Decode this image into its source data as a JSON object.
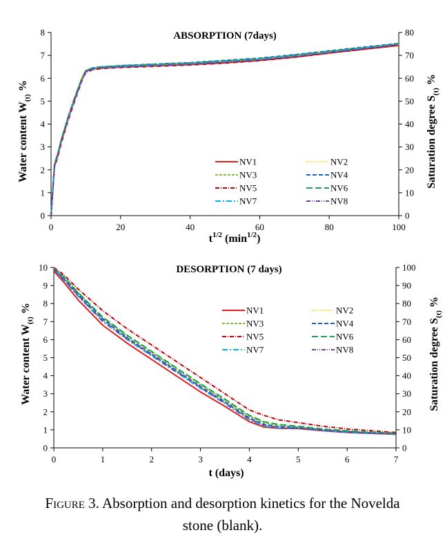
{
  "chart_data": [
    {
      "type": "line",
      "title": "ABSORPTION  (7days)",
      "xlabel": "t^1/2  (min^1/2)",
      "ylabel": "Water content W(t) %",
      "y2label": "Saturation degree S(t) %",
      "xlim": [
        0,
        100
      ],
      "ylim": [
        0,
        8
      ],
      "y2lim": [
        0,
        80
      ],
      "xticks": [
        0,
        20,
        40,
        60,
        80,
        100
      ],
      "yticks": [
        0,
        1,
        2,
        3,
        4,
        5,
        6,
        7,
        8
      ],
      "y2ticks": [
        0,
        10,
        20,
        30,
        40,
        50,
        60,
        70,
        80
      ],
      "grid": false,
      "legend_position": "bottom-right",
      "series": [
        {
          "name": "NV1",
          "color": "#e41a1c",
          "dash": "solid",
          "x": [
            0,
            1,
            2,
            3,
            5,
            7,
            9,
            10,
            12,
            15,
            20,
            30,
            40,
            50,
            60,
            70,
            80,
            90,
            100
          ],
          "y": [
            0,
            2.2,
            2.7,
            3.3,
            4.3,
            5.2,
            6.0,
            6.3,
            6.42,
            6.47,
            6.5,
            6.55,
            6.6,
            6.68,
            6.78,
            6.92,
            7.1,
            7.27,
            7.43
          ]
        },
        {
          "name": "NV2",
          "color": "#ffd700",
          "dash": "1,2",
          "x": [
            0,
            1,
            2,
            3,
            5,
            7,
            9,
            10,
            12,
            15,
            20,
            30,
            40,
            50,
            60,
            70,
            80,
            90,
            100
          ],
          "y": [
            0,
            2.3,
            2.8,
            3.4,
            4.4,
            5.3,
            6.1,
            6.35,
            6.46,
            6.5,
            6.53,
            6.58,
            6.63,
            6.72,
            6.82,
            6.97,
            7.14,
            7.3,
            7.47
          ]
        },
        {
          "name": "NV3",
          "color": "#7fbf3f",
          "dash": "4,2",
          "x": [
            0,
            1,
            2,
            3,
            5,
            7,
            9,
            10,
            12,
            15,
            20,
            30,
            40,
            50,
            60,
            70,
            80,
            90,
            100
          ],
          "y": [
            0,
            2.25,
            2.75,
            3.35,
            4.35,
            5.25,
            6.05,
            6.33,
            6.45,
            6.5,
            6.54,
            6.6,
            6.66,
            6.75,
            6.85,
            7.0,
            7.17,
            7.33,
            7.5
          ]
        },
        {
          "name": "NV4",
          "color": "#1f5fbf",
          "dash": "6,3",
          "x": [
            0,
            1,
            2,
            3,
            5,
            7,
            9,
            10,
            12,
            15,
            20,
            30,
            40,
            50,
            60,
            70,
            80,
            90,
            100
          ],
          "y": [
            0,
            2.2,
            2.7,
            3.3,
            4.3,
            5.2,
            6.0,
            6.32,
            6.45,
            6.5,
            6.55,
            6.62,
            6.68,
            6.78,
            6.88,
            7.03,
            7.2,
            7.36,
            7.52
          ]
        },
        {
          "name": "NV5",
          "color": "#c00000",
          "dash": "6,2,1,2",
          "x": [
            0,
            1,
            2,
            3,
            5,
            7,
            9,
            10,
            12,
            15,
            20,
            30,
            40,
            50,
            60,
            70,
            80,
            90,
            100
          ],
          "y": [
            0,
            2.1,
            2.6,
            3.2,
            4.2,
            5.1,
            5.95,
            6.25,
            6.38,
            6.43,
            6.47,
            6.52,
            6.58,
            6.66,
            6.77,
            6.92,
            7.1,
            7.27,
            7.45
          ]
        },
        {
          "name": "NV6",
          "color": "#1f9f4f",
          "dash": "9,4",
          "x": [
            0,
            1,
            2,
            3,
            5,
            7,
            9,
            10,
            12,
            15,
            20,
            30,
            40,
            50,
            60,
            70,
            80,
            90,
            100
          ],
          "y": [
            0,
            2.25,
            2.75,
            3.35,
            4.35,
            5.25,
            6.05,
            6.33,
            6.46,
            6.51,
            6.55,
            6.61,
            6.67,
            6.76,
            6.86,
            7.01,
            7.18,
            7.34,
            7.5
          ]
        },
        {
          "name": "NV7",
          "color": "#00b0f0",
          "dash": "8,3,2,3",
          "x": [
            0,
            1,
            2,
            3,
            5,
            7,
            9,
            10,
            12,
            15,
            20,
            30,
            40,
            50,
            60,
            70,
            80,
            90,
            100
          ],
          "y": [
            0,
            2.2,
            2.7,
            3.3,
            4.3,
            5.2,
            6.0,
            6.3,
            6.43,
            6.48,
            6.52,
            6.58,
            6.64,
            6.73,
            6.83,
            6.98,
            7.15,
            7.32,
            7.48
          ]
        },
        {
          "name": "NV8",
          "color": "#6a3fa0",
          "dash": "6,2,1,2,1,2",
          "x": [
            0,
            1,
            2,
            3,
            5,
            7,
            9,
            10,
            12,
            15,
            20,
            30,
            40,
            50,
            60,
            70,
            80,
            90,
            100
          ],
          "y": [
            0,
            2.2,
            2.7,
            3.3,
            4.3,
            5.2,
            6.0,
            6.28,
            6.4,
            6.45,
            6.49,
            6.55,
            6.61,
            6.7,
            6.8,
            6.95,
            7.12,
            7.29,
            7.46
          ]
        }
      ]
    },
    {
      "type": "line",
      "title": "DESORPTION  (7 days)",
      "xlabel": "t (days)",
      "ylabel": "Water content W(t) %",
      "y2label": "Saturation degree S(t) %",
      "xlim": [
        0,
        7
      ],
      "ylim": [
        0,
        10
      ],
      "y2lim": [
        0,
        100
      ],
      "xticks": [
        0,
        1,
        2,
        3,
        4,
        5,
        6,
        7
      ],
      "yticks": [
        0,
        1,
        2,
        3,
        4,
        5,
        6,
        7,
        8,
        9,
        10
      ],
      "y2ticks": [
        0,
        10,
        20,
        30,
        40,
        50,
        60,
        70,
        80,
        90,
        100
      ],
      "grid": false,
      "legend_position": "top-right",
      "series": [
        {
          "name": "NV1",
          "color": "#e41a1c",
          "dash": "solid",
          "x": [
            0,
            0.2,
            0.5,
            1,
            1.5,
            2,
            2.5,
            3,
            3.5,
            4,
            4.3,
            4.6,
            5,
            5.5,
            6,
            6.5,
            7
          ],
          "y": [
            9.8,
            9.2,
            8.2,
            6.8,
            5.8,
            4.9,
            4.0,
            3.1,
            2.3,
            1.45,
            1.15,
            1.08,
            1.07,
            0.95,
            0.85,
            0.8,
            0.75
          ]
        },
        {
          "name": "NV2",
          "color": "#ffd700",
          "dash": "1,2",
          "x": [
            0,
            0.2,
            0.5,
            1,
            1.5,
            2,
            2.5,
            3,
            3.5,
            4,
            4.3,
            4.6,
            5,
            5.5,
            6,
            6.5,
            7
          ],
          "y": [
            9.9,
            9.4,
            8.5,
            7.1,
            6.1,
            5.2,
            4.3,
            3.4,
            2.6,
            1.7,
            1.35,
            1.22,
            1.15,
            1.02,
            0.92,
            0.85,
            0.8
          ]
        },
        {
          "name": "NV3",
          "color": "#7fbf3f",
          "dash": "4,2",
          "x": [
            0,
            0.2,
            0.5,
            1,
            1.5,
            2,
            2.5,
            3,
            3.5,
            4,
            4.3,
            4.6,
            5,
            5.5,
            6,
            6.5,
            7
          ],
          "y": [
            9.95,
            9.5,
            8.6,
            7.2,
            6.2,
            5.3,
            4.4,
            3.5,
            2.65,
            1.75,
            1.4,
            1.25,
            1.15,
            1.02,
            0.92,
            0.85,
            0.8
          ]
        },
        {
          "name": "NV4",
          "color": "#1f5fbf",
          "dash": "6,3",
          "x": [
            0,
            0.2,
            0.5,
            1,
            1.5,
            2,
            2.5,
            3,
            3.5,
            4,
            4.3,
            4.6,
            5,
            5.5,
            6,
            6.5,
            7
          ],
          "y": [
            9.9,
            9.4,
            8.5,
            7.15,
            6.1,
            5.2,
            4.3,
            3.4,
            2.55,
            1.65,
            1.3,
            1.18,
            1.12,
            1.0,
            0.9,
            0.83,
            0.78
          ]
        },
        {
          "name": "NV5",
          "color": "#c00000",
          "dash": "6,2,1,2",
          "x": [
            0,
            0.2,
            0.5,
            1,
            1.5,
            2,
            2.5,
            3,
            3.5,
            4,
            4.3,
            4.6,
            5,
            5.5,
            6,
            6.5,
            7
          ],
          "y": [
            10.0,
            9.6,
            8.8,
            7.6,
            6.6,
            5.7,
            4.8,
            3.9,
            3.0,
            2.1,
            1.8,
            1.55,
            1.4,
            1.2,
            1.05,
            0.95,
            0.85
          ]
        },
        {
          "name": "NV6",
          "color": "#1f9f4f",
          "dash": "9,4",
          "x": [
            0,
            0.2,
            0.5,
            1,
            1.5,
            2,
            2.5,
            3,
            3.5,
            4,
            4.3,
            4.6,
            5,
            5.5,
            6,
            6.5,
            7
          ],
          "y": [
            9.95,
            9.5,
            8.6,
            7.25,
            6.25,
            5.35,
            4.45,
            3.55,
            2.7,
            1.8,
            1.45,
            1.3,
            1.2,
            1.05,
            0.95,
            0.87,
            0.82
          ]
        },
        {
          "name": "NV7",
          "color": "#00b0f0",
          "dash": "8,3,2,3",
          "x": [
            0,
            0.2,
            0.5,
            1,
            1.5,
            2,
            2.5,
            3,
            3.5,
            4,
            4.3,
            4.6,
            5,
            5.5,
            6,
            6.5,
            7
          ],
          "y": [
            9.9,
            9.3,
            8.4,
            7.0,
            6.0,
            5.1,
            4.2,
            3.3,
            2.45,
            1.55,
            1.2,
            1.1,
            1.08,
            0.96,
            0.86,
            0.8,
            0.76
          ]
        },
        {
          "name": "NV8",
          "color": "#6a3fa0",
          "dash": "6,2,1,2,1,2",
          "x": [
            0,
            0.2,
            0.5,
            1,
            1.5,
            2,
            2.5,
            3,
            3.5,
            4,
            4.3,
            4.6,
            5,
            5.5,
            6,
            6.5,
            7
          ],
          "y": [
            9.9,
            9.35,
            8.45,
            7.05,
            6.05,
            5.15,
            4.25,
            3.35,
            2.5,
            1.6,
            1.25,
            1.12,
            1.09,
            0.97,
            0.87,
            0.81,
            0.77
          ]
        }
      ]
    }
  ],
  "caption": {
    "label": "Figure",
    "rest_line1": " 3. Absorption and desorption kinetics for the Novelda",
    "line2": "stone (blank)."
  }
}
